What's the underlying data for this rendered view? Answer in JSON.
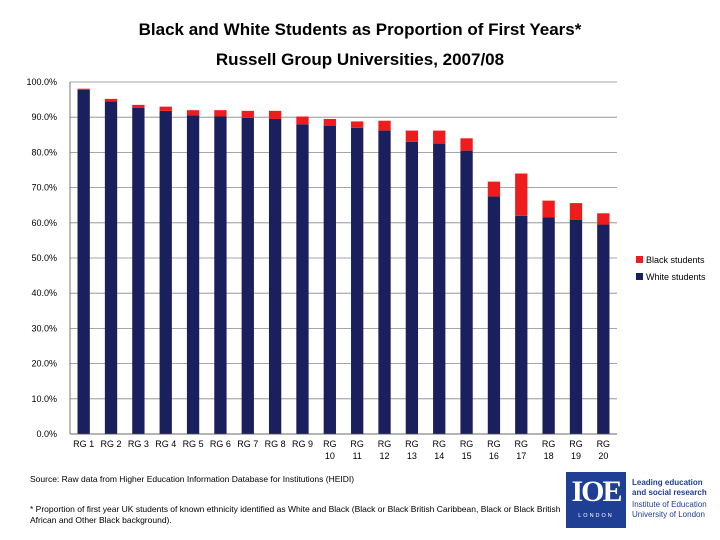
{
  "chart_data": {
    "type": "bar",
    "stacked": true,
    "title": "Black and White Students as Proportion of First Years*",
    "subtitle": "Russell Group Universities, 2007/08",
    "categories": [
      "RG 1",
      "RG 2",
      "RG 3",
      "RG 4",
      "RG 5",
      "RG 6",
      "RG 7",
      "RG 8",
      "RG 9",
      "RG 10",
      "RG 11",
      "RG 12",
      "RG 13",
      "RG 14",
      "RG 15",
      "RG 16",
      "RG 17",
      "RG 18",
      "RG 19",
      "RG 20"
    ],
    "category_lines": [
      [
        "RG 1"
      ],
      [
        "RG 2"
      ],
      [
        "RG 3"
      ],
      [
        "RG 4"
      ],
      [
        "RG 5"
      ],
      [
        "RG 6"
      ],
      [
        "RG 7"
      ],
      [
        "RG 8"
      ],
      [
        "RG 9"
      ],
      [
        "RG",
        "10"
      ],
      [
        "RG",
        "11"
      ],
      [
        "RG",
        "12"
      ],
      [
        "RG",
        "13"
      ],
      [
        "RG",
        "14"
      ],
      [
        "RG",
        "15"
      ],
      [
        "RG",
        "16"
      ],
      [
        "RG",
        "17"
      ],
      [
        "RG",
        "18"
      ],
      [
        "RG",
        "19"
      ],
      [
        "RG",
        "20"
      ]
    ],
    "series": [
      {
        "name": "White students",
        "color": "#1a1f5e",
        "values": [
          97.8,
          94.5,
          92.7,
          91.8,
          90.5,
          90.2,
          89.8,
          89.5,
          88.0,
          87.5,
          87.0,
          86.2,
          83.0,
          82.5,
          80.5,
          67.5,
          62.0,
          61.5,
          60.8,
          59.5
        ]
      },
      {
        "name": "Black students",
        "color": "#ee1c1c",
        "values": [
          0.3,
          0.7,
          0.8,
          1.2,
          1.5,
          1.8,
          2.0,
          2.3,
          2.2,
          2.0,
          1.8,
          2.8,
          3.2,
          3.7,
          3.5,
          4.2,
          12.0,
          4.8,
          4.8,
          3.2
        ]
      }
    ],
    "ylim": [
      0,
      100
    ],
    "yticks": [
      "0.0%",
      "10.0%",
      "20.0%",
      "30.0%",
      "40.0%",
      "50.0%",
      "60.0%",
      "70.0%",
      "80.0%",
      "90.0%",
      "100.0%"
    ],
    "grid": true,
    "legend_position": "right"
  },
  "source": "Source: Raw data from Higher Education Information Database for Institutions (HEIDI)",
  "footnote": "* Proportion of first year UK students of known ethnicity identified as White and Black (Black or Black British Caribbean, Black or Black British African and Other Black background).",
  "logo": {
    "mark": "IOE",
    "sub": "LONDON",
    "tagline": "Leading education and social research",
    "institution": "Institute of Education University of London"
  }
}
